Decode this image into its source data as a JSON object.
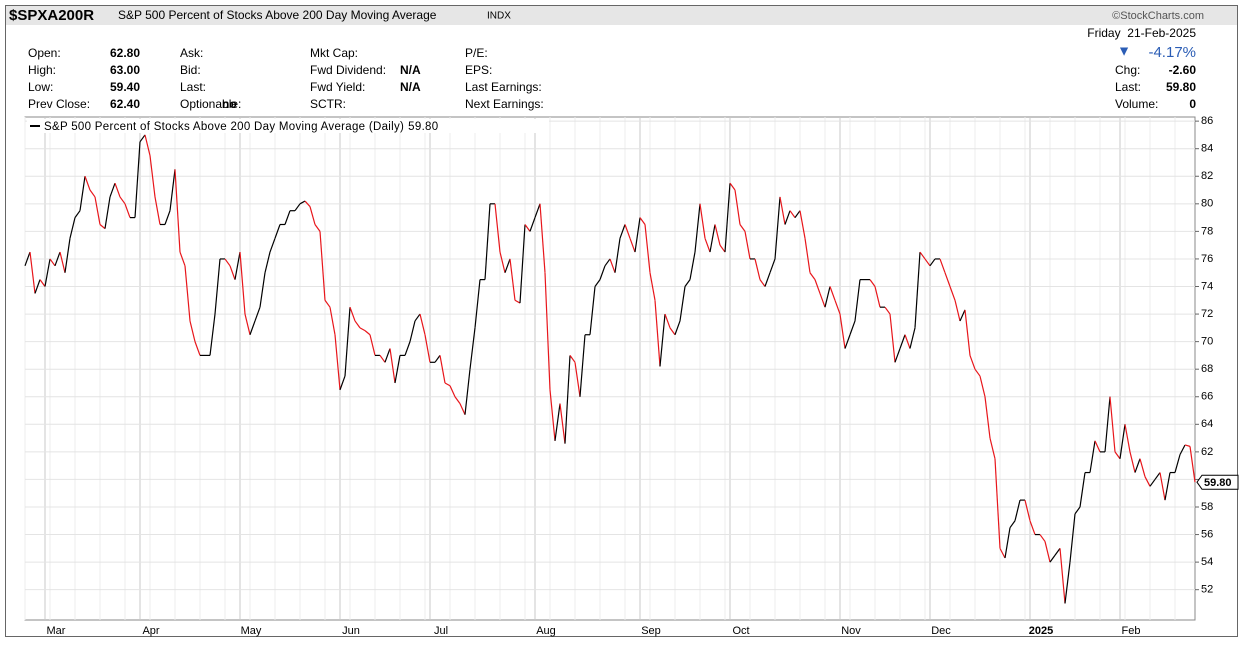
{
  "header": {
    "symbol": "$SPXA200R",
    "name": "S&P 500 Percent of Stocks Above 200 Day Moving Average",
    "exchange": "INDX",
    "brand": "©StockCharts.com",
    "date": "Friday  21-Feb-2025",
    "change_pct": "-4.17%",
    "quote": [
      [
        {
          "label": "Open:",
          "value": "62.80"
        },
        {
          "label": "High:",
          "value": "63.00"
        },
        {
          "label": "Low:",
          "value": "59.40"
        },
        {
          "label": "Prev Close:",
          "value": "62.40"
        }
      ],
      [
        {
          "label": "Ask:"
        },
        {
          "label": "Bid:"
        },
        {
          "label": "Last:"
        },
        {
          "label": "Optionable:",
          "value": "no"
        }
      ],
      [
        {
          "label": "Mkt Cap:"
        },
        {
          "label": "Fwd Dividend:",
          "value": "N/A"
        },
        {
          "label": "Fwd Yield:",
          "value": "N/A"
        },
        {
          "label": "SCTR:"
        }
      ],
      [
        {
          "label": "P/E:"
        },
        {
          "label": "EPS:"
        },
        {
          "label": "Last Earnings:"
        },
        {
          "label": "Next Earnings:"
        }
      ]
    ],
    "right": [
      {
        "label": "Chg:",
        "value": "-2.60"
      },
      {
        "label": "Last:",
        "value": "59.80"
      },
      {
        "label": "Volume:",
        "value": "0"
      }
    ]
  },
  "chart_data": {
    "type": "line",
    "legend": "S&P 500 Percent of Stocks Above 200 Day Moving Average (Daily)",
    "last_label": "59.80",
    "up_color": "#000000",
    "down_color": "#e8161b",
    "grid": true,
    "ylim": [
      49.8,
      86.3
    ],
    "yticks": [
      52,
      54,
      56,
      58,
      60,
      62,
      64,
      66,
      68,
      70,
      72,
      74,
      76,
      78,
      80,
      82,
      84,
      86
    ],
    "categories": [
      null,
      null,
      null,
      null,
      "Mar",
      null,
      null,
      null,
      null,
      null,
      null,
      null,
      null,
      null,
      null,
      null,
      null,
      null,
      null,
      null,
      null,
      null,
      null,
      "Apr",
      null,
      null,
      null,
      null,
      null,
      null,
      null,
      null,
      null,
      null,
      null,
      null,
      null,
      null,
      null,
      null,
      null,
      null,
      null,
      "May",
      null,
      null,
      null,
      null,
      null,
      null,
      null,
      null,
      null,
      null,
      null,
      null,
      null,
      null,
      null,
      null,
      null,
      null,
      null,
      "Jun",
      null,
      null,
      null,
      null,
      null,
      null,
      null,
      null,
      null,
      null,
      null,
      null,
      null,
      null,
      null,
      null,
      null,
      "Jul",
      null,
      null,
      null,
      null,
      null,
      null,
      null,
      null,
      null,
      null,
      null,
      null,
      null,
      null,
      null,
      null,
      null,
      null,
      null,
      null,
      "Aug",
      null,
      null,
      null,
      null,
      null,
      null,
      null,
      null,
      null,
      null,
      null,
      null,
      null,
      null,
      null,
      null,
      null,
      null,
      null,
      null,
      "Sep",
      null,
      null,
      null,
      null,
      null,
      null,
      null,
      null,
      null,
      null,
      null,
      null,
      null,
      null,
      null,
      null,
      null,
      "Oct",
      null,
      null,
      null,
      null,
      null,
      null,
      null,
      null,
      null,
      null,
      null,
      null,
      null,
      null,
      null,
      null,
      null,
      null,
      null,
      null,
      null,
      "Nov",
      null,
      null,
      null,
      null,
      null,
      null,
      null,
      null,
      null,
      null,
      null,
      null,
      null,
      null,
      null,
      null,
      null,
      "Dec",
      null,
      null,
      null,
      null,
      null,
      null,
      null,
      null,
      null,
      null,
      null,
      null,
      null,
      null,
      null,
      null,
      null,
      null,
      null,
      "2025",
      null,
      null,
      null,
      null,
      null,
      null,
      null,
      null,
      null,
      null,
      null,
      null,
      null,
      null,
      null,
      null,
      null,
      "Feb",
      null,
      null,
      null,
      null,
      null,
      null,
      null,
      null,
      null,
      null,
      null,
      null,
      null,
      null,
      null
    ],
    "values": [
      75.5,
      76.5,
      73.5,
      74.5,
      74,
      76,
      75.5,
      76.5,
      75,
      77.5,
      79,
      79.5,
      82,
      81,
      80.5,
      78.5,
      78.2,
      80.5,
      81.5,
      80.5,
      80,
      79,
      79,
      84.5,
      85,
      83.5,
      80.5,
      78.5,
      78.5,
      79.5,
      82.5,
      76.5,
      75.5,
      71.5,
      70,
      69,
      69,
      69,
      72,
      76,
      76,
      75.5,
      74.5,
      76.5,
      72,
      70.5,
      71.5,
      72.5,
      75,
      76.5,
      77.5,
      78.5,
      78.5,
      79.5,
      79.5,
      80,
      80.2,
      79.8,
      78.5,
      78,
      73,
      72.5,
      70.5,
      66.5,
      67.5,
      72.5,
      71.5,
      71,
      70.8,
      70.5,
      69,
      69,
      68.5,
      69.5,
      67,
      69,
      69,
      70,
      71.5,
      72,
      70.5,
      68.5,
      68.5,
      69,
      67,
      66.8,
      66,
      65.5,
      64.7,
      68,
      71,
      74.5,
      74.5,
      80,
      80,
      76.5,
      75,
      76,
      73,
      72.8,
      78.5,
      78,
      79,
      80,
      75,
      66.5,
      62.8,
      65.5,
      62.6,
      69,
      68.5,
      66,
      70.5,
      70.5,
      74,
      74.5,
      75.5,
      76,
      75,
      77.5,
      78.5,
      77.5,
      76.5,
      79,
      78.5,
      75,
      73,
      68.2,
      72,
      71,
      70.5,
      71.5,
      74,
      74.5,
      76.5,
      80,
      77.5,
      76.5,
      78.5,
      77,
      76.5,
      81.5,
      81,
      78.5,
      78,
      76,
      76,
      74.5,
      74,
      75,
      76,
      80.5,
      78.5,
      79.5,
      79,
      79.5,
      77.5,
      75,
      74.5,
      73.5,
      72.5,
      74,
      73,
      72,
      69.5,
      70.5,
      71.5,
      74.5,
      74.5,
      74.5,
      74,
      72.5,
      72.5,
      72,
      68.5,
      69.5,
      70.5,
      69.5,
      71,
      76.5,
      76,
      75.5,
      76,
      76,
      75,
      74,
      73,
      71.5,
      72.3,
      69,
      68,
      67.5,
      66,
      63,
      61.5,
      55,
      54.3,
      56.5,
      57,
      58.5,
      58.5,
      57,
      56,
      56,
      55.5,
      54,
      54.5,
      55,
      51,
      54,
      57.5,
      58,
      60.5,
      60.5,
      62.8,
      62,
      62,
      66,
      62,
      61.5,
      64,
      62,
      60.5,
      61.5,
      60.2,
      59.5,
      60,
      60.5,
      58.5,
      60.5,
      60.5,
      61.8,
      62.5,
      62.4,
      59.8
    ]
  }
}
